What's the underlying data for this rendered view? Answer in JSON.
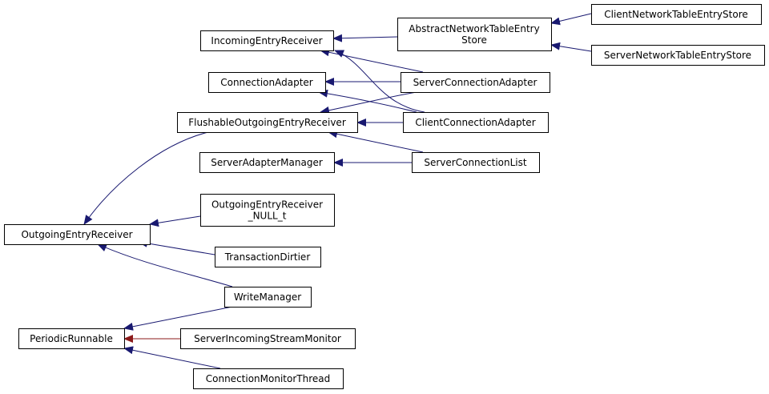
{
  "nodes": [
    {
      "label": [
        "OutgoingEntryReceiver"
      ]
    },
    {
      "label": [
        "PeriodicRunnable"
      ]
    },
    {
      "label": [
        "IncomingEntryReceiver"
      ]
    },
    {
      "label": [
        "ConnectionAdapter"
      ]
    },
    {
      "label": [
        "FlushableOutgoingEntryReceiver"
      ]
    },
    {
      "label": [
        "ServerAdapterManager"
      ]
    },
    {
      "label": [
        "OutgoingEntryReceiver",
        "_NULL_t"
      ]
    },
    {
      "label": [
        "TransactionDirtier"
      ]
    },
    {
      "label": [
        "WriteManager"
      ]
    },
    {
      "label": [
        "ServerIncomingStreamMonitor"
      ]
    },
    {
      "label": [
        "ConnectionMonitorThread"
      ]
    },
    {
      "label": [
        "AbstractNetworkTableEntry",
        "Store"
      ]
    },
    {
      "label": [
        "ServerConnectionAdapter"
      ]
    },
    {
      "label": [
        "ClientConnectionAdapter"
      ]
    },
    {
      "label": [
        "ServerConnectionList"
      ]
    },
    {
      "label": [
        "ClientNetworkTableEntryStore"
      ]
    },
    {
      "label": [
        "ServerNetworkTableEntryStore"
      ]
    }
  ]
}
